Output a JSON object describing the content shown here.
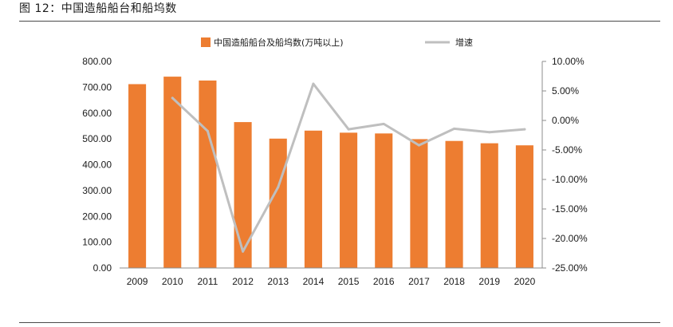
{
  "figure": {
    "title": "图 12：中国造船船台和船坞数"
  },
  "chart_data": {
    "type": "bar",
    "categories": [
      "2009",
      "2010",
      "2011",
      "2012",
      "2013",
      "2014",
      "2015",
      "2016",
      "2017",
      "2018",
      "2019",
      "2020"
    ],
    "series": [
      {
        "name": "中国造船船台及船坞数(万吨以上)",
        "kind": "bar",
        "axis": "left",
        "color": "#ED7D31",
        "values": [
          712,
          741,
          726,
          565,
          501,
          532,
          524,
          521,
          499,
          492,
          483,
          475
        ]
      },
      {
        "name": "增速",
        "kind": "line",
        "axis": "right",
        "color": "#BFBFBF",
        "values": [
          null,
          3.8,
          -1.8,
          -22.2,
          -11.3,
          6.2,
          -1.5,
          -0.6,
          -4.2,
          -1.4,
          -2.0,
          -1.5
        ]
      }
    ],
    "left_axis": {
      "min": 0,
      "max": 800,
      "step": 100,
      "tick_labels": [
        "0.00",
        "100.00",
        "200.00",
        "300.00",
        "400.00",
        "500.00",
        "600.00",
        "700.00",
        "800.00"
      ]
    },
    "right_axis": {
      "min": -25,
      "max": 10,
      "step": 5,
      "tick_labels": [
        "-25.00%",
        "-20.00%",
        "-15.00%",
        "-10.00%",
        "-5.00%",
        "0.00%",
        "5.00%",
        "10.00%"
      ]
    },
    "legend_placement": "top",
    "grid": false
  }
}
